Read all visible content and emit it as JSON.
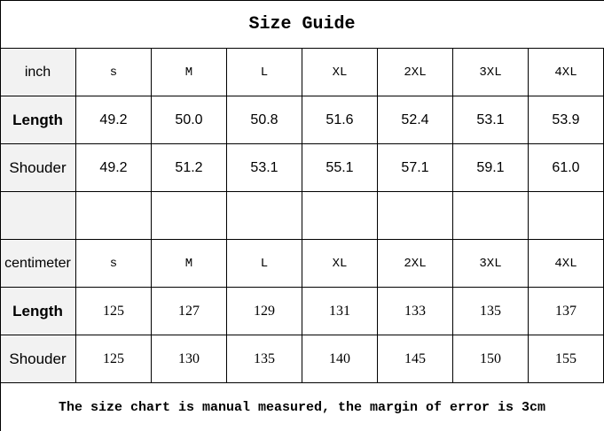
{
  "title": "Size Guide",
  "inch_table": {
    "unit": "inch",
    "sizes": [
      "s",
      "M",
      "L",
      "XL",
      "2XL",
      "3XL",
      "4XL"
    ],
    "rows": [
      {
        "label": "Length",
        "values": [
          "49.2",
          "50.0",
          "50.8",
          "51.6",
          "52.4",
          "53.1",
          "53.9"
        ]
      },
      {
        "label": "Shouder",
        "values": [
          "49.2",
          "51.2",
          "53.1",
          "55.1",
          "57.1",
          "59.1",
          "61.0"
        ]
      }
    ]
  },
  "cm_table": {
    "unit": "centimeter",
    "sizes": [
      "s",
      "M",
      "L",
      "XL",
      "2XL",
      "3XL",
      "4XL"
    ],
    "rows": [
      {
        "label": "Length",
        "values": [
          "125",
          "127",
          "129",
          "131",
          "133",
          "135",
          "137"
        ]
      },
      {
        "label": "Shouder",
        "values": [
          "125",
          "130",
          "135",
          "140",
          "145",
          "150",
          "155"
        ]
      }
    ]
  },
  "footer": "The size chart is manual measured, the margin of error is 3cm"
}
